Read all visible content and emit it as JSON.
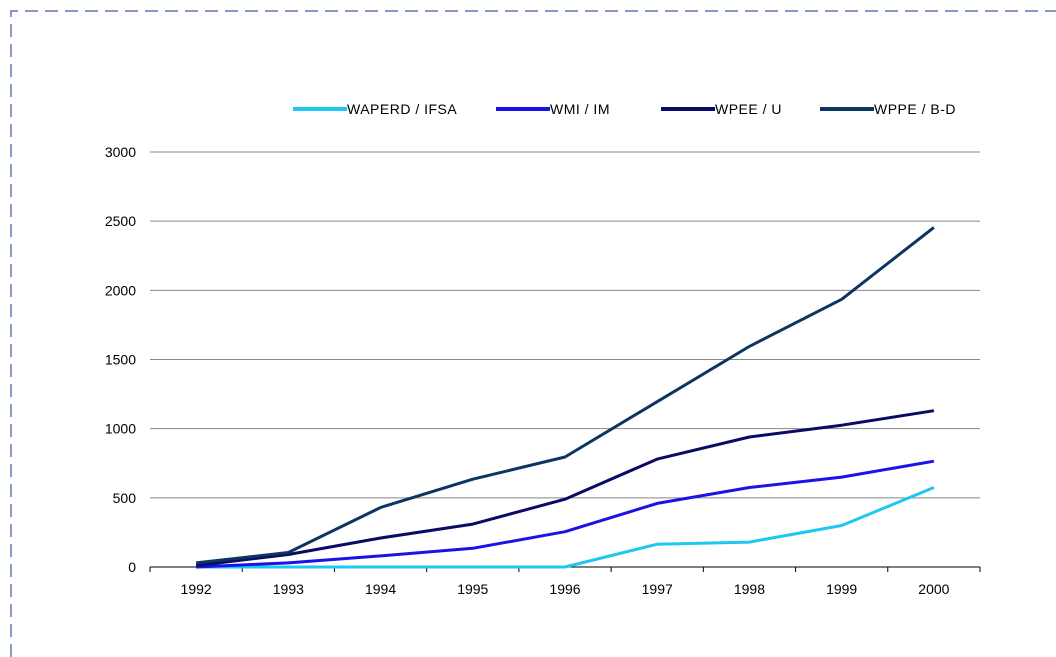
{
  "chart_data": {
    "type": "line",
    "title": "",
    "xlabel": "",
    "ylabel": "",
    "categories": [
      "1992",
      "1993",
      "1994",
      "1995",
      "1996",
      "1997",
      "1998",
      "1999",
      "2000"
    ],
    "ylim": [
      0,
      3000
    ],
    "yticks": [
      "0",
      "500",
      "1000",
      "1500",
      "2000",
      "2500",
      "3000"
    ],
    "grid": true,
    "legend_position": "top",
    "series": [
      {
        "name": "WAPERD / IFSA",
        "color": "#1ec8f0",
        "values": [
          0,
          0,
          0,
          0,
          0,
          165,
          180,
          300,
          575
        ]
      },
      {
        "name": "WMI / IM",
        "color": "#1a12e6",
        "values": [
          0,
          30,
          80,
          135,
          255,
          460,
          575,
          650,
          765
        ]
      },
      {
        "name": "WPEE / U",
        "color": "#0b0a66",
        "values": [
          10,
          90,
          210,
          310,
          490,
          780,
          940,
          1025,
          1130
        ]
      },
      {
        "name": "WPPE / B-D",
        "color": "#0c3562",
        "values": [
          30,
          105,
          430,
          635,
          795,
          1195,
          1595,
          1935,
          2455
        ]
      }
    ]
  }
}
